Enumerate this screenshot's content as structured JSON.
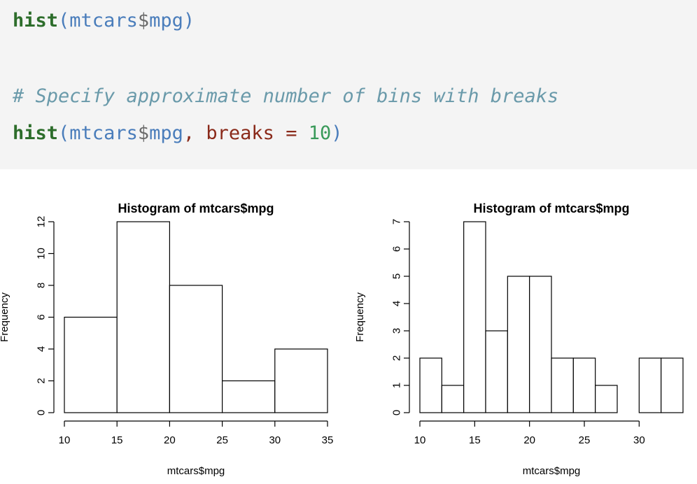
{
  "code": {
    "lines": [
      {
        "fn": "hist",
        "open": "(",
        "obj": "mtcars",
        "dollar": "$",
        "col": "mpg",
        "close": ")"
      },
      {
        "comment": "# Specify approximate number of bins with breaks"
      },
      {
        "fn": "hist",
        "open": "(",
        "obj": "mtcars",
        "dollar": "$",
        "col": "mpg",
        "comma": ", ",
        "param": "breaks",
        "eq": " = ",
        "num": "10",
        "close": ")"
      }
    ]
  },
  "chart_data": [
    {
      "type": "bar",
      "title": "Histogram of mtcars$mpg",
      "xlabel": "mtcars$mpg",
      "ylabel": "Frequency",
      "bins": [
        [
          10,
          15
        ],
        [
          15,
          20
        ],
        [
          20,
          25
        ],
        [
          25,
          30
        ],
        [
          30,
          35
        ]
      ],
      "values": [
        6,
        12,
        8,
        2,
        4
      ],
      "xlim": [
        10,
        35
      ],
      "ylim": [
        0,
        12
      ],
      "xticks": [
        10,
        15,
        20,
        25,
        30,
        35
      ],
      "yticks": [
        0,
        2,
        4,
        6,
        8,
        10,
        12
      ],
      "grid": false
    },
    {
      "type": "bar",
      "title": "Histogram of mtcars$mpg",
      "xlabel": "mtcars$mpg",
      "ylabel": "Frequency",
      "bins": [
        [
          10,
          12
        ],
        [
          12,
          14
        ],
        [
          14,
          16
        ],
        [
          16,
          18
        ],
        [
          18,
          20
        ],
        [
          20,
          22
        ],
        [
          22,
          24
        ],
        [
          24,
          26
        ],
        [
          26,
          28
        ],
        [
          28,
          30
        ],
        [
          30,
          32
        ],
        [
          32,
          34
        ]
      ],
      "values": [
        2,
        1,
        7,
        3,
        5,
        5,
        2,
        2,
        1,
        0,
        2,
        2
      ],
      "xlim": [
        10,
        34
      ],
      "ylim": [
        0,
        7
      ],
      "xticks": [
        10,
        15,
        20,
        25,
        30
      ],
      "yticks": [
        0,
        1,
        2,
        3,
        4,
        5,
        6,
        7
      ],
      "grid": false
    }
  ]
}
